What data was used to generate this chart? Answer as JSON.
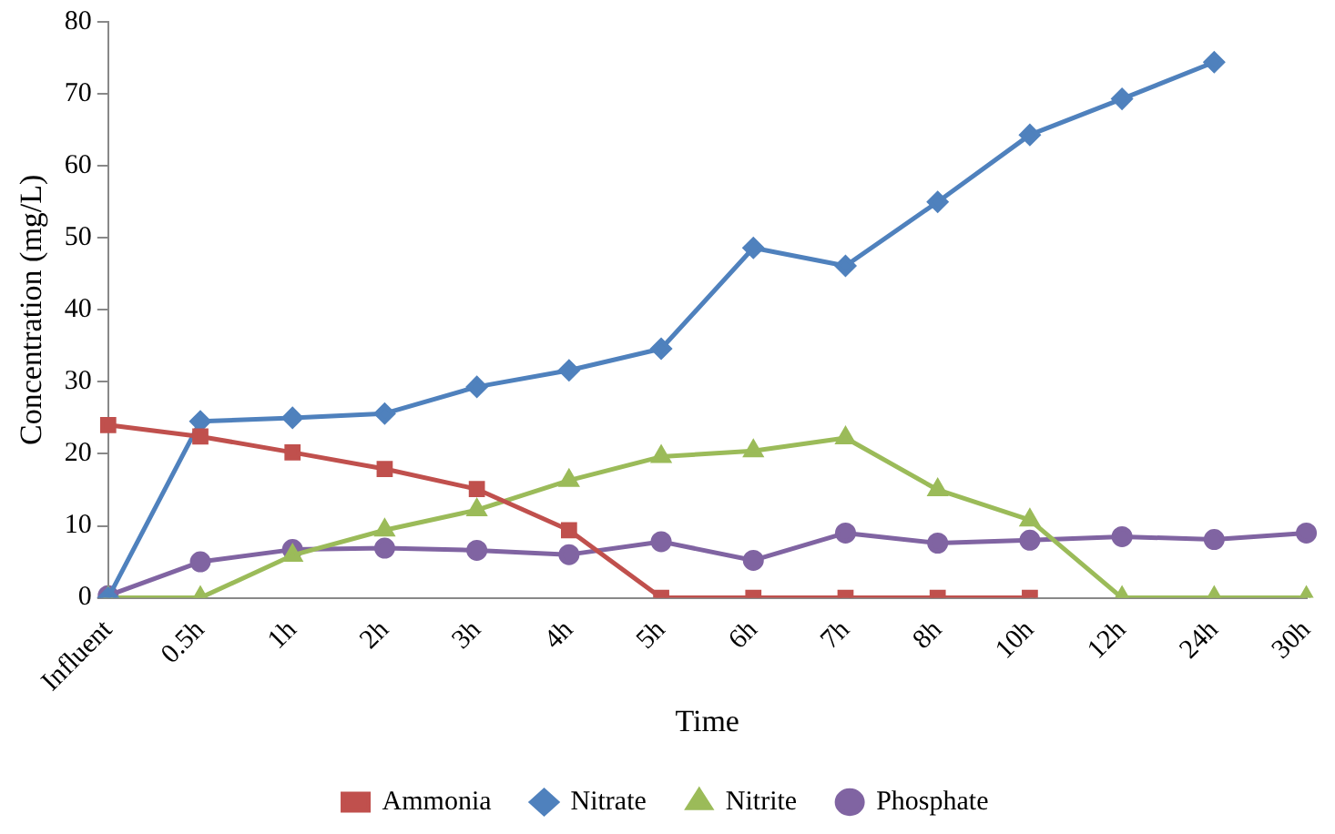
{
  "chart_data": {
    "type": "line",
    "xlabel": "Time",
    "ylabel": "Concentration (mg/L)",
    "categories": [
      "Influent",
      "0.5h",
      "1h",
      "2h",
      "3h",
      "4h",
      "5h",
      "6h",
      "7h",
      "8h",
      "10h",
      "12h",
      "24h",
      "30h"
    ],
    "ylim": [
      0,
      80
    ],
    "yticks": [
      0,
      10,
      20,
      30,
      40,
      50,
      60,
      70,
      80
    ],
    "grid": false,
    "legend": "bottom",
    "line_style": "solid",
    "series": [
      {
        "name": "Ammonia",
        "color": "#c0504d",
        "marker": "square",
        "values": [
          24,
          22.4,
          20.2,
          17.9,
          15.1,
          9.4,
          0,
          0,
          0,
          0,
          0,
          null,
          null,
          null
        ]
      },
      {
        "name": "Nitrate",
        "color": "#4f81bd",
        "marker": "diamond",
        "values": [
          0,
          24.5,
          25,
          25.6,
          29.3,
          31.6,
          34.6,
          48.6,
          46.1,
          55,
          64.3,
          69.3,
          74.4,
          null
        ]
      },
      {
        "name": "Nitrite",
        "color": "#9bbb59",
        "marker": "triangle",
        "values": [
          0,
          0,
          5.9,
          9.4,
          12.2,
          16.3,
          19.6,
          20.4,
          22.2,
          15,
          10.8,
          0,
          0,
          0
        ]
      },
      {
        "name": "Phosphate",
        "color": "#8064a2",
        "marker": "circle",
        "values": [
          0.3,
          5,
          6.7,
          6.9,
          6.6,
          6,
          7.8,
          5.2,
          9,
          7.6,
          8,
          8.5,
          8.1,
          9
        ]
      }
    ]
  }
}
